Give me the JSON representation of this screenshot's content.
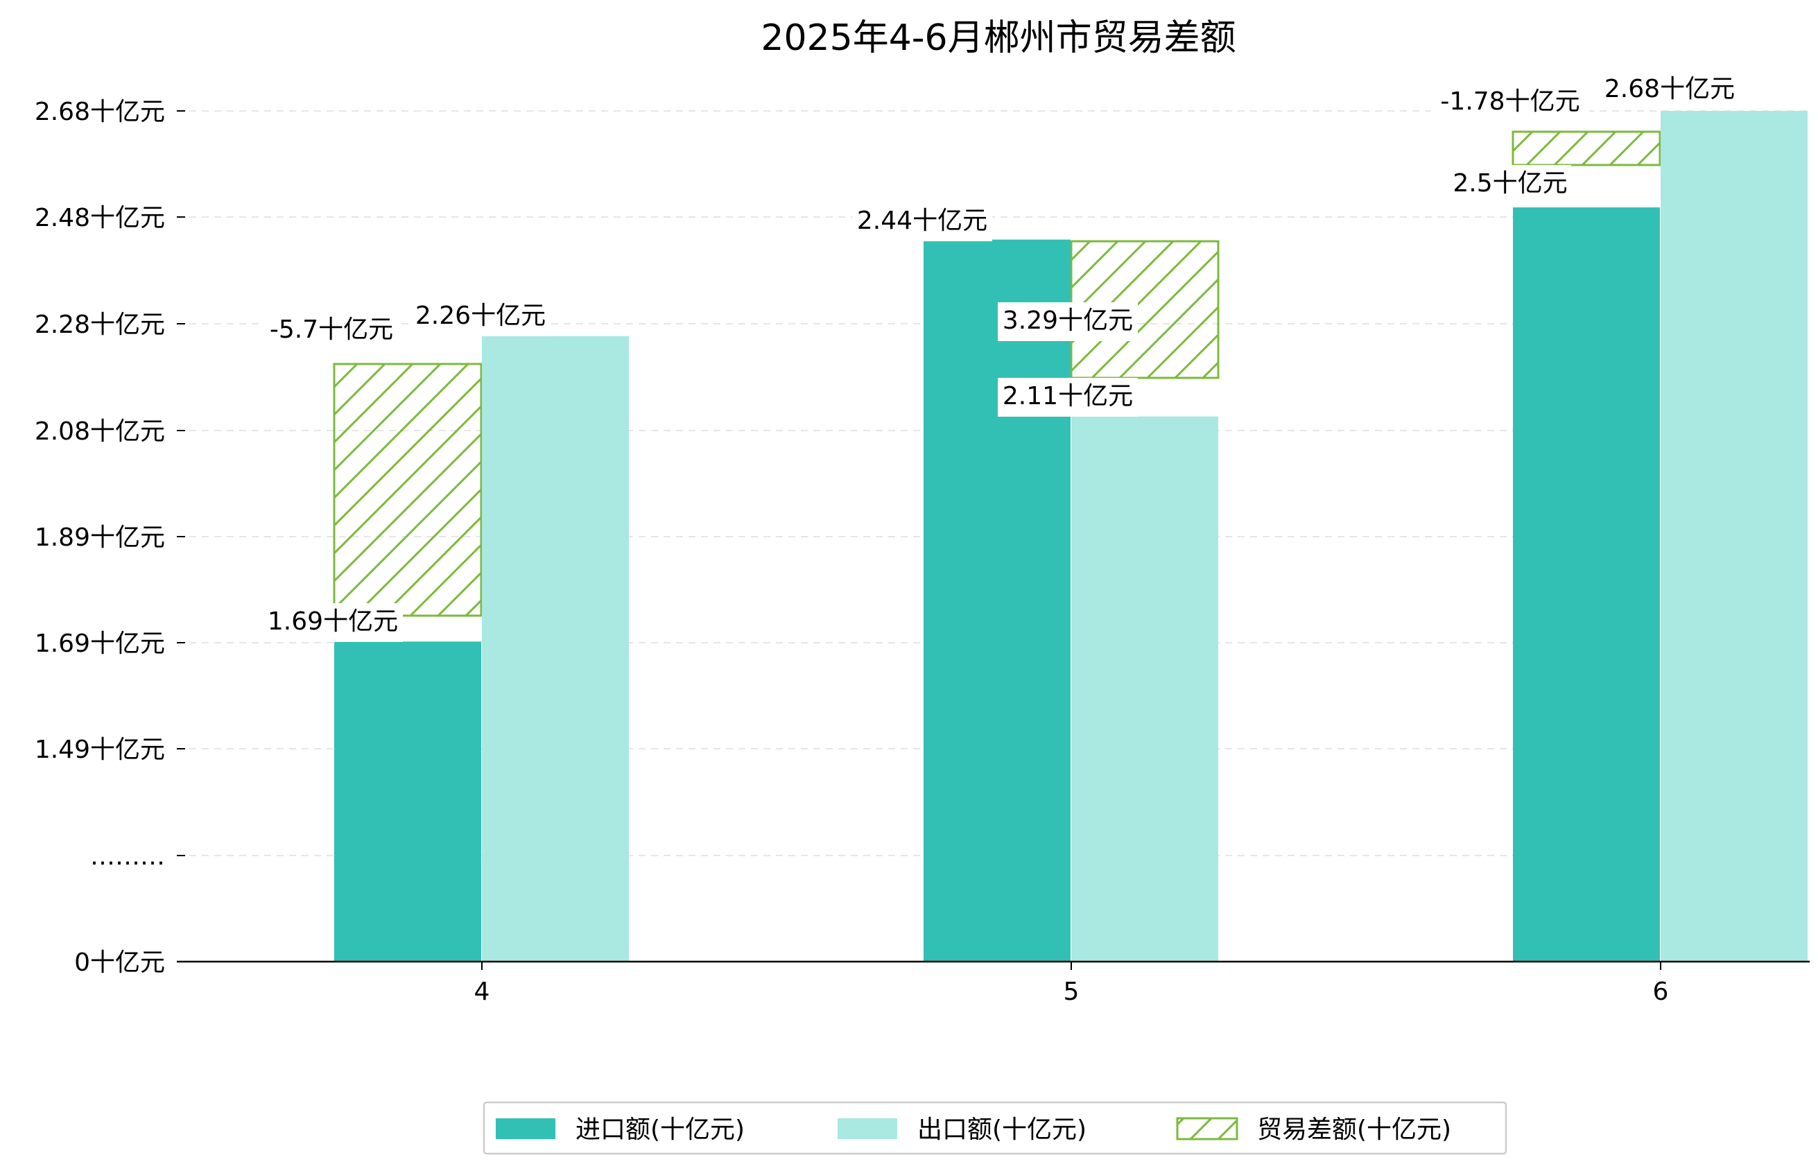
{
  "chart_data": {
    "type": "bar",
    "title": "2025年4-6月郴州市贸易差额",
    "xlabel": "",
    "ylabel": "",
    "categories": [
      "4",
      "5",
      "6"
    ],
    "y_tick_labels": [
      "0十亿元",
      "………",
      "1.49十亿元",
      "1.69十亿元",
      "1.89十亿元",
      "2.08十亿元",
      "2.28十亿元",
      "2.48十亿元",
      "2.68十亿元"
    ],
    "series": [
      {
        "name": "进口额(十亿元)",
        "values": [
          1.69,
          2.44,
          2.5
        ],
        "labels": [
          "1.69十亿元",
          "2.44十亿元",
          "2.5十亿元"
        ],
        "color": "#32c0b4"
      },
      {
        "name": "出口额(十亿元)",
        "values": [
          2.26,
          2.11,
          2.68
        ],
        "labels": [
          "2.26十亿元",
          "2.11十亿元",
          "2.68十亿元"
        ],
        "color": "#aae8e2"
      },
      {
        "name": "贸易差额(十亿元)",
        "values": [
          -5.7,
          3.29,
          -1.78
        ],
        "labels": [
          "-5.7十亿元",
          "3.29十亿元",
          "-1.78十亿元"
        ],
        "color": "#7cba3d",
        "hatch": "diagonal"
      }
    ],
    "legend_position": "bottom-center",
    "grid": true
  }
}
